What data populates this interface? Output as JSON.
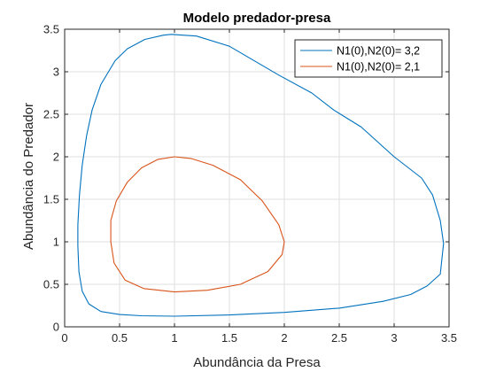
{
  "chart_data": {
    "type": "line",
    "title": "Modelo predador-presa",
    "xlabel": "Abundância da Presa",
    "ylabel": "Abundância do Predador",
    "xlim": [
      0,
      3.5
    ],
    "ylim": [
      0,
      3.5
    ],
    "xticks": [
      "0",
      "0.5",
      "1",
      "1.5",
      "2",
      "2.5",
      "3",
      "3.5"
    ],
    "yticks": [
      "0",
      "0.5",
      "1",
      "1.5",
      "2",
      "2.5",
      "3",
      "3.5"
    ],
    "grid": true,
    "legend_position": "top-right",
    "series": [
      {
        "name": "N1(0),N2(0)= 3,2",
        "color": "#0072BD",
        "x": [
          0.9,
          0.73,
          0.57,
          0.46,
          0.33,
          0.25,
          0.2,
          0.16,
          0.135,
          0.12,
          0.12,
          0.13,
          0.16,
          0.22,
          0.33,
          0.5,
          0.7,
          1.0,
          1.5,
          2.0,
          2.5,
          2.9,
          3.15,
          3.3,
          3.42,
          3.45,
          3.42,
          3.35,
          3.25,
          3.0,
          2.7,
          2.45,
          2.25,
          1.95,
          1.5,
          1.2,
          0.97,
          0.9
        ],
        "y": [
          3.43,
          3.38,
          3.27,
          3.13,
          2.85,
          2.55,
          2.25,
          1.9,
          1.55,
          1.2,
          0.95,
          0.65,
          0.42,
          0.27,
          0.18,
          0.145,
          0.13,
          0.125,
          0.14,
          0.17,
          0.22,
          0.3,
          0.38,
          0.48,
          0.62,
          0.98,
          1.25,
          1.55,
          1.75,
          2.0,
          2.35,
          2.55,
          2.75,
          2.96,
          3.3,
          3.42,
          3.44,
          3.43
        ]
      },
      {
        "name": "N1(0),N2(0)= 2,1",
        "color": "#D95319",
        "x": [
          1.0,
          0.85,
          0.7,
          0.57,
          0.47,
          0.42,
          0.42,
          0.45,
          0.55,
          0.72,
          1.0,
          1.3,
          1.6,
          1.85,
          1.98,
          2.0,
          1.95,
          1.8,
          1.6,
          1.35,
          1.15,
          1.0
        ],
        "y": [
          2.0,
          1.97,
          1.87,
          1.7,
          1.48,
          1.25,
          1.0,
          0.75,
          0.55,
          0.45,
          0.41,
          0.43,
          0.5,
          0.65,
          0.85,
          1.0,
          1.2,
          1.48,
          1.73,
          1.9,
          1.98,
          2.0
        ]
      }
    ]
  }
}
